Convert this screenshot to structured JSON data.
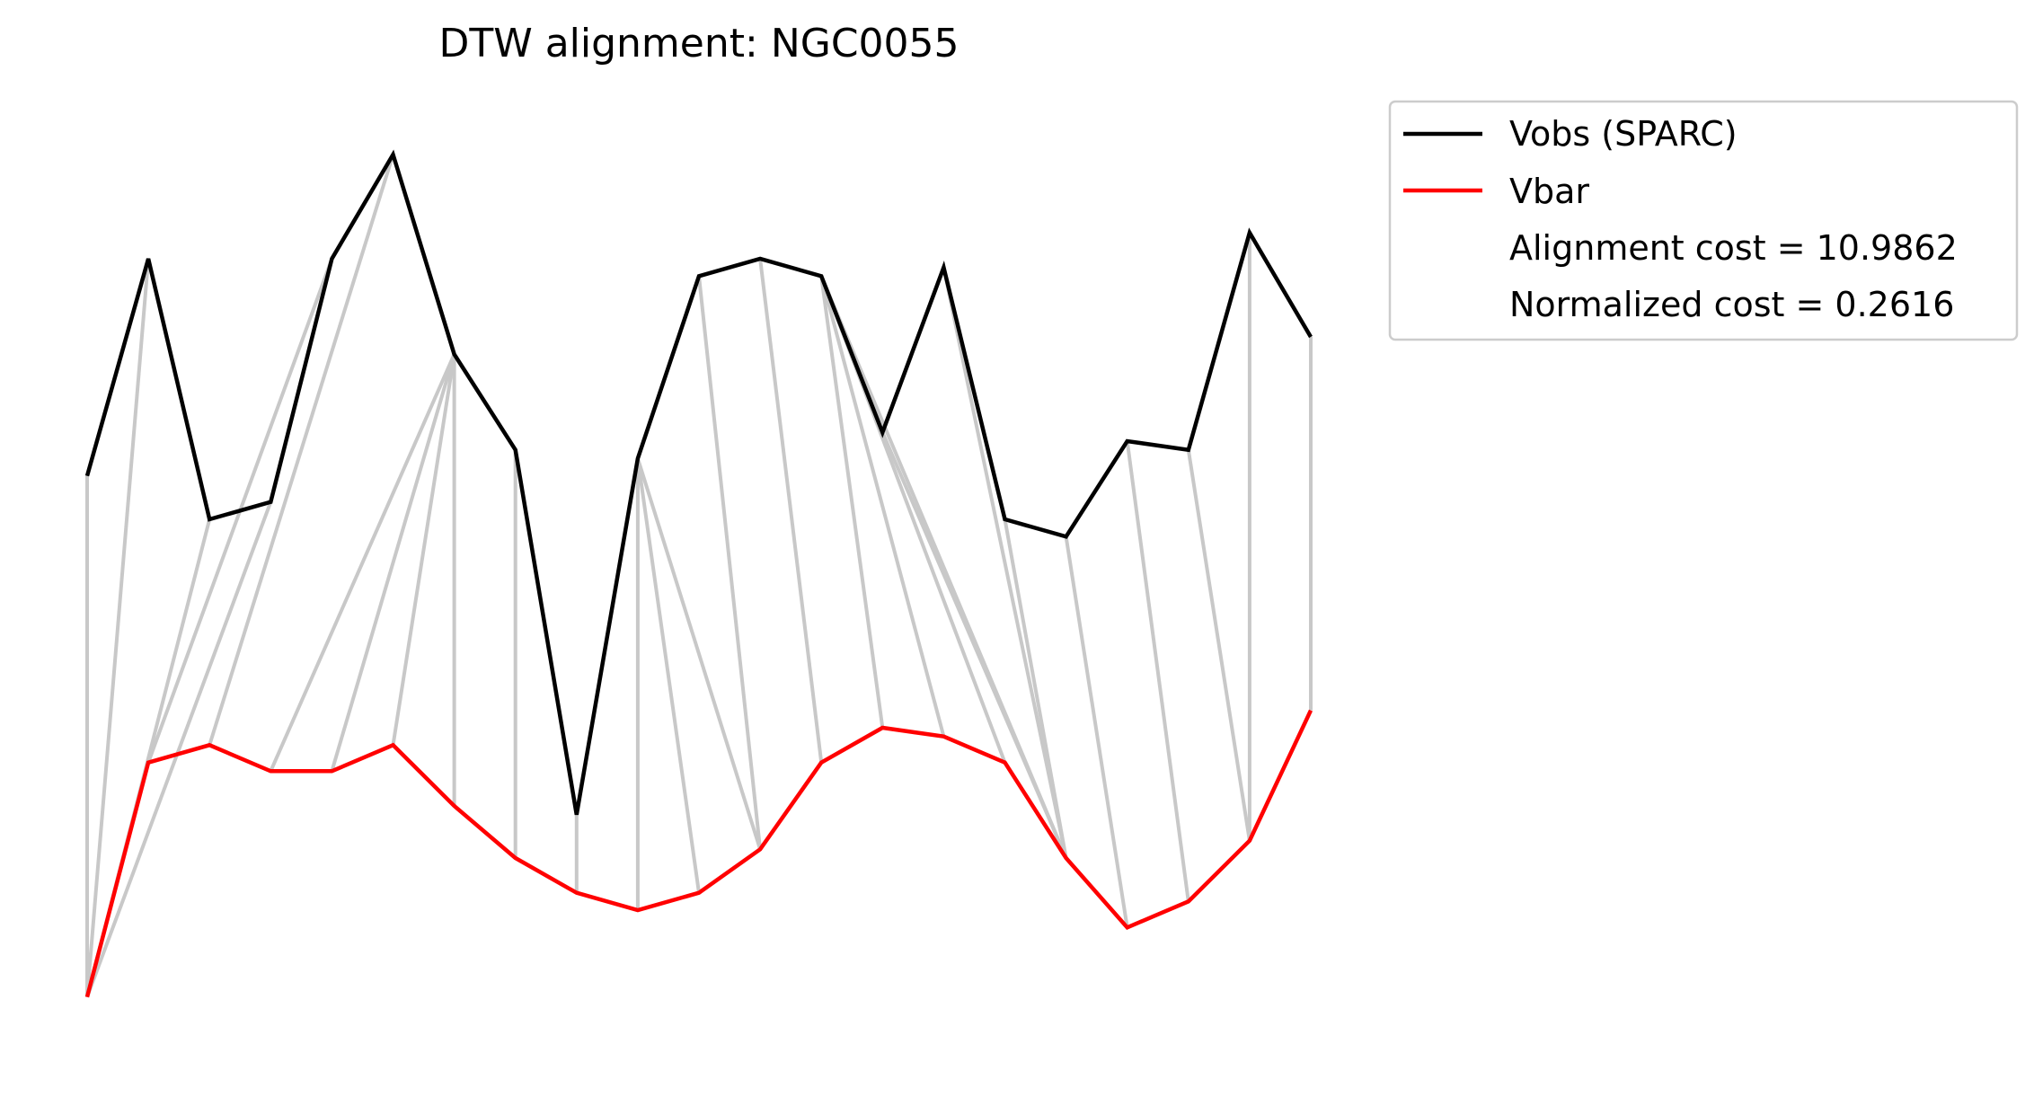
{
  "chart_data": {
    "type": "line",
    "title": "DTW alignment: NGC0055",
    "xlabel": "",
    "ylabel": "",
    "axes_visible": false,
    "grid": false,
    "legend_placement": "outside-top-right",
    "x": [
      0,
      1,
      2,
      3,
      4,
      5,
      6,
      7,
      8,
      9,
      10,
      11,
      12,
      13,
      14,
      15,
      16,
      17,
      18,
      19,
      20
    ],
    "ylim": [
      -0.5,
      10.0
    ],
    "series": [
      {
        "name": "Vobs (SPARC)",
        "color": "#000000",
        "values": [
          6.0,
          8.5,
          5.5,
          5.7,
          8.5,
          9.7,
          7.4,
          6.3,
          2.1,
          6.2,
          8.3,
          8.5,
          8.3,
          6.5,
          8.4,
          5.5,
          5.3,
          6.4,
          6.3,
          8.8,
          7.6
        ]
      },
      {
        "name": "Vbar",
        "color": "#ff0000",
        "values": [
          0.0,
          2.7,
          2.9,
          2.6,
          2.6,
          2.9,
          2.2,
          1.6,
          1.2,
          1.0,
          1.2,
          1.7,
          2.7,
          3.1,
          3.0,
          2.7,
          1.6,
          0.8,
          1.1,
          1.8,
          3.3
        ]
      }
    ],
    "alignment_pairs": [
      [
        0,
        0
      ],
      [
        1,
        0
      ],
      [
        2,
        0
      ],
      [
        3,
        0
      ],
      [
        4,
        1
      ],
      [
        5,
        2
      ],
      [
        6,
        3
      ],
      [
        6,
        4
      ],
      [
        6,
        5
      ],
      [
        6,
        6
      ],
      [
        7,
        7
      ],
      [
        8,
        8
      ],
      [
        9,
        9
      ],
      [
        9,
        10
      ],
      [
        9,
        11
      ],
      [
        10,
        11
      ],
      [
        11,
        12
      ],
      [
        12,
        13
      ],
      [
        12,
        14
      ],
      [
        12,
        15
      ],
      [
        12,
        16
      ],
      [
        13,
        16
      ],
      [
        14,
        16
      ],
      [
        15,
        16
      ],
      [
        16,
        17
      ],
      [
        17,
        18
      ],
      [
        18,
        19
      ],
      [
        19,
        19
      ],
      [
        20,
        20
      ]
    ],
    "alignment_color": "#c8c8c8",
    "legend": {
      "entries": [
        {
          "label": "Vobs (SPARC)",
          "color": "#000000"
        },
        {
          "label": "Vbar",
          "color": "#ff0000"
        },
        {
          "label": "Alignment cost = 10.9862",
          "color": ""
        },
        {
          "label": "Normalized cost = 0.2616",
          "color": ""
        }
      ]
    }
  }
}
